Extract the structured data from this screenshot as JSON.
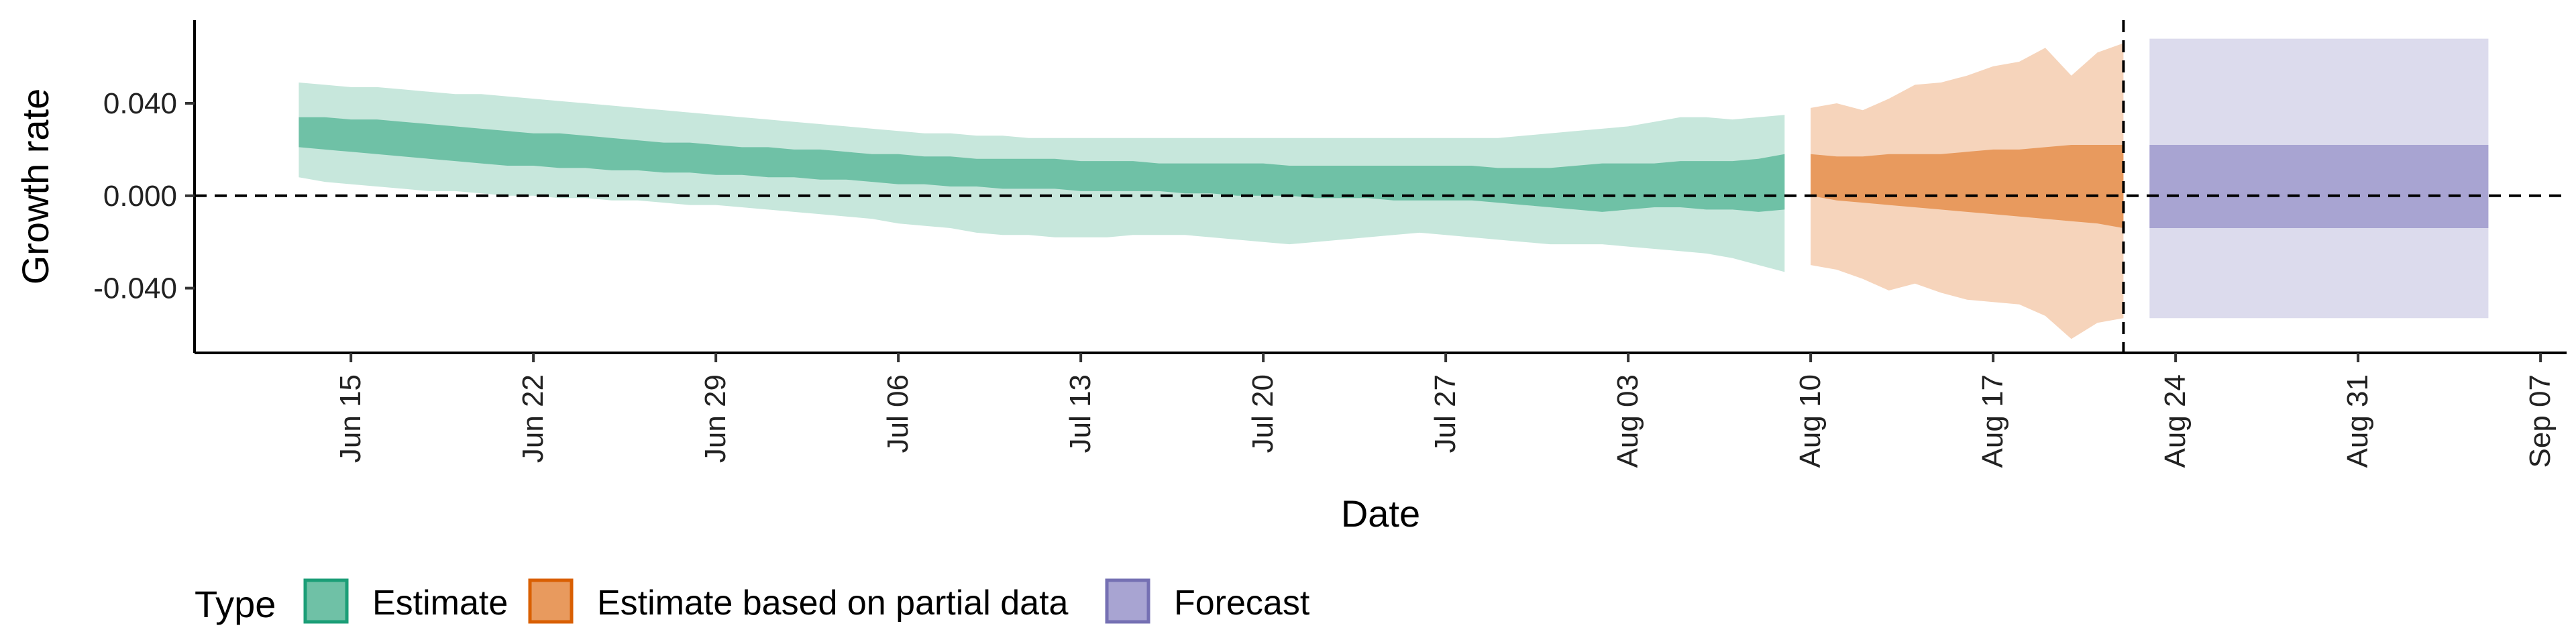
{
  "chart_data": {
    "type": "area",
    "xlabel": "Date",
    "ylabel": "Growth rate",
    "xlim": [
      "2020-06-09",
      "2020-09-08"
    ],
    "ylim": [
      -0.068,
      0.076
    ],
    "x_ticks": [
      {
        "date": "2020-06-15",
        "label": "Jun 15"
      },
      {
        "date": "2020-06-22",
        "label": "Jun 22"
      },
      {
        "date": "2020-06-29",
        "label": "Jun 29"
      },
      {
        "date": "2020-07-06",
        "label": "Jul 06"
      },
      {
        "date": "2020-07-13",
        "label": "Jul 13"
      },
      {
        "date": "2020-07-20",
        "label": "Jul 20"
      },
      {
        "date": "2020-07-27",
        "label": "Jul 27"
      },
      {
        "date": "2020-08-03",
        "label": "Aug 03"
      },
      {
        "date": "2020-08-10",
        "label": "Aug 10"
      },
      {
        "date": "2020-08-17",
        "label": "Aug 17"
      },
      {
        "date": "2020-08-24",
        "label": "Aug 24"
      },
      {
        "date": "2020-08-31",
        "label": "Aug 31"
      },
      {
        "date": "2020-09-07",
        "label": "Sep 07"
      }
    ],
    "y_ticks": [
      {
        "value": 0.04,
        "label": "0.040"
      },
      {
        "value": 0.0,
        "label": "0.000"
      },
      {
        "value": -0.04,
        "label": "-0.040"
      }
    ],
    "hline": 0,
    "vline": "2020-08-22",
    "grid": false,
    "legend": {
      "title": "Type",
      "position": "bottom",
      "entries": [
        {
          "label": "Estimate",
          "fill": "#6fc1a6",
          "border": "#1b9e77"
        },
        {
          "label": "Estimate based on partial data",
          "fill": "#e89a5e",
          "border": "#d95f02"
        },
        {
          "label": "Forecast",
          "fill": "#a8a4d2",
          "border": "#7570b3"
        }
      ]
    },
    "series": [
      {
        "type_label": "Estimate",
        "inner_color": "#6fc1a6",
        "outer_color": "#c7e7dc",
        "x": [
          "2020-06-13",
          "2020-06-14",
          "2020-06-15",
          "2020-06-16",
          "2020-06-17",
          "2020-06-18",
          "2020-06-19",
          "2020-06-20",
          "2020-06-21",
          "2020-06-22",
          "2020-06-23",
          "2020-06-24",
          "2020-06-25",
          "2020-06-26",
          "2020-06-27",
          "2020-06-28",
          "2020-06-29",
          "2020-06-30",
          "2020-07-01",
          "2020-07-02",
          "2020-07-03",
          "2020-07-04",
          "2020-07-05",
          "2020-07-06",
          "2020-07-07",
          "2020-07-08",
          "2020-07-09",
          "2020-07-10",
          "2020-07-11",
          "2020-07-12",
          "2020-07-13",
          "2020-07-14",
          "2020-07-15",
          "2020-07-16",
          "2020-07-17",
          "2020-07-18",
          "2020-07-19",
          "2020-07-20",
          "2020-07-21",
          "2020-07-22",
          "2020-07-23",
          "2020-07-24",
          "2020-07-25",
          "2020-07-26",
          "2020-07-27",
          "2020-07-28",
          "2020-07-29",
          "2020-07-30",
          "2020-07-31",
          "2020-08-01",
          "2020-08-02",
          "2020-08-03",
          "2020-08-04",
          "2020-08-05",
          "2020-08-06",
          "2020-08-07",
          "2020-08-08",
          "2020-08-09"
        ],
        "lower_90": [
          0.008,
          0.006,
          0.005,
          0.004,
          0.003,
          0.002,
          0.002,
          0.001,
          0.0,
          0.0,
          -0.001,
          -0.001,
          -0.002,
          -0.002,
          -0.003,
          -0.004,
          -0.004,
          -0.005,
          -0.006,
          -0.007,
          -0.008,
          -0.009,
          -0.01,
          -0.012,
          -0.013,
          -0.014,
          -0.016,
          -0.017,
          -0.017,
          -0.018,
          -0.018,
          -0.018,
          -0.017,
          -0.017,
          -0.017,
          -0.018,
          -0.019,
          -0.02,
          -0.021,
          -0.02,
          -0.019,
          -0.018,
          -0.017,
          -0.016,
          -0.017,
          -0.018,
          -0.019,
          -0.02,
          -0.021,
          -0.021,
          -0.021,
          -0.022,
          -0.023,
          -0.024,
          -0.025,
          -0.027,
          -0.03,
          -0.033
        ],
        "lower_50": [
          0.021,
          0.02,
          0.019,
          0.018,
          0.017,
          0.016,
          0.015,
          0.014,
          0.013,
          0.013,
          0.012,
          0.012,
          0.011,
          0.011,
          0.01,
          0.01,
          0.009,
          0.009,
          0.008,
          0.008,
          0.007,
          0.007,
          0.006,
          0.005,
          0.005,
          0.004,
          0.004,
          0.003,
          0.003,
          0.003,
          0.002,
          0.002,
          0.002,
          0.002,
          0.001,
          0.001,
          0.0,
          0.0,
          0.0,
          -0.001,
          -0.001,
          -0.001,
          -0.002,
          -0.002,
          -0.002,
          -0.002,
          -0.003,
          -0.004,
          -0.005,
          -0.006,
          -0.007,
          -0.006,
          -0.005,
          -0.005,
          -0.006,
          -0.006,
          -0.007,
          -0.006
        ],
        "upper_50": [
          0.034,
          0.034,
          0.033,
          0.033,
          0.032,
          0.031,
          0.03,
          0.029,
          0.028,
          0.027,
          0.027,
          0.026,
          0.025,
          0.024,
          0.023,
          0.023,
          0.022,
          0.021,
          0.021,
          0.02,
          0.02,
          0.019,
          0.018,
          0.018,
          0.017,
          0.017,
          0.016,
          0.016,
          0.016,
          0.016,
          0.015,
          0.015,
          0.015,
          0.014,
          0.014,
          0.014,
          0.014,
          0.014,
          0.013,
          0.013,
          0.013,
          0.013,
          0.013,
          0.013,
          0.013,
          0.013,
          0.012,
          0.012,
          0.012,
          0.013,
          0.014,
          0.014,
          0.014,
          0.015,
          0.015,
          0.015,
          0.016,
          0.018
        ],
        "upper_90": [
          0.049,
          0.048,
          0.047,
          0.047,
          0.046,
          0.045,
          0.044,
          0.044,
          0.043,
          0.042,
          0.041,
          0.04,
          0.039,
          0.038,
          0.037,
          0.036,
          0.035,
          0.034,
          0.033,
          0.032,
          0.031,
          0.03,
          0.029,
          0.028,
          0.027,
          0.027,
          0.026,
          0.026,
          0.025,
          0.025,
          0.025,
          0.025,
          0.025,
          0.025,
          0.025,
          0.025,
          0.025,
          0.025,
          0.025,
          0.025,
          0.025,
          0.025,
          0.025,
          0.025,
          0.025,
          0.025,
          0.025,
          0.026,
          0.027,
          0.028,
          0.029,
          0.03,
          0.032,
          0.034,
          0.034,
          0.033,
          0.034,
          0.035
        ]
      },
      {
        "type_label": "Estimate based on partial data",
        "inner_color": "#e89a5e",
        "outer_color": "#f6d4bb",
        "x": [
          "2020-08-10",
          "2020-08-11",
          "2020-08-12",
          "2020-08-13",
          "2020-08-14",
          "2020-08-15",
          "2020-08-16",
          "2020-08-17",
          "2020-08-18",
          "2020-08-19",
          "2020-08-20",
          "2020-08-21",
          "2020-08-22"
        ],
        "lower_90": [
          -0.03,
          -0.032,
          -0.036,
          -0.041,
          -0.038,
          -0.042,
          -0.045,
          -0.046,
          -0.047,
          -0.052,
          -0.062,
          -0.055,
          -0.053
        ],
        "lower_50": [
          0.0,
          -0.002,
          -0.003,
          -0.004,
          -0.005,
          -0.006,
          -0.007,
          -0.008,
          -0.009,
          -0.01,
          -0.011,
          -0.012,
          -0.014
        ],
        "upper_50": [
          0.018,
          0.017,
          0.017,
          0.018,
          0.018,
          0.018,
          0.019,
          0.02,
          0.02,
          0.021,
          0.022,
          0.022,
          0.022
        ],
        "upper_90": [
          0.038,
          0.04,
          0.037,
          0.042,
          0.048,
          0.049,
          0.052,
          0.056,
          0.058,
          0.064,
          0.052,
          0.062,
          0.066
        ]
      },
      {
        "type_label": "Forecast",
        "inner_color": "#a8a4d2",
        "outer_color": "#dcdbed",
        "x": [
          "2020-08-23",
          "2020-09-05"
        ],
        "lower_90": [
          -0.053,
          -0.053
        ],
        "lower_50": [
          -0.014,
          -0.014
        ],
        "upper_50": [
          0.022,
          0.022
        ],
        "upper_90": [
          0.068,
          0.068
        ]
      }
    ]
  }
}
